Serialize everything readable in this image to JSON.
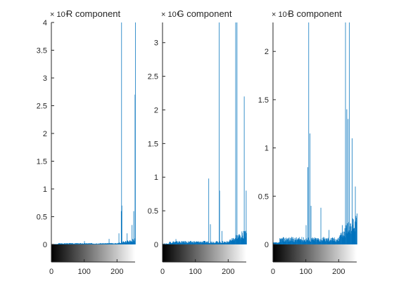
{
  "chart_data": [
    {
      "type": "histogram",
      "title": "R component",
      "exponent_label": "× 10⁴",
      "bar_color": "#0072BD",
      "xlim": [
        0,
        255
      ],
      "ylim": [
        0,
        40000
      ],
      "xticks": [
        0,
        100,
        200
      ],
      "xtick_labels": [
        "0",
        "100",
        "200"
      ],
      "yticks": [
        0,
        5000,
        10000,
        15000,
        20000,
        25000,
        30000,
        35000,
        40000
      ],
      "ytick_labels": [
        "0",
        "0.5",
        "1",
        "1.5",
        "2",
        "2.5",
        "3",
        "3.5",
        "4"
      ],
      "colorbar": "gray",
      "peaks": [
        [
          100,
          600
        ],
        [
          175,
          1000
        ],
        [
          205,
          2000
        ],
        [
          212,
          6000
        ],
        [
          213,
          40000
        ],
        [
          214,
          7000
        ],
        [
          230,
          2000
        ],
        [
          245,
          3500
        ],
        [
          250,
          6000
        ],
        [
          254,
          27000
        ],
        [
          255,
          40000
        ]
      ],
      "baseline": 200
    },
    {
      "type": "histogram",
      "title": "G component",
      "exponent_label": "× 10⁴",
      "bar_color": "#0072BD",
      "xlim": [
        0,
        255
      ],
      "ylim": [
        0,
        33000
      ],
      "xticks": [
        0,
        100,
        200
      ],
      "xtick_labels": [
        "0",
        "100",
        "200"
      ],
      "yticks": [
        0,
        5000,
        10000,
        15000,
        20000,
        25000,
        30000
      ],
      "ytick_labels": [
        "0",
        "0.5",
        "1",
        "1.5",
        "2",
        "2.5",
        "3"
      ],
      "colorbar": "gray",
      "peaks": [
        [
          40,
          800
        ],
        [
          50,
          500
        ],
        [
          140,
          9800
        ],
        [
          145,
          3000
        ],
        [
          172,
          33000
        ],
        [
          173,
          8000
        ],
        [
          180,
          2000
        ],
        [
          222,
          33000
        ],
        [
          226,
          33000
        ],
        [
          248,
          22000
        ],
        [
          254,
          8000
        ]
      ],
      "baseline": 400
    },
    {
      "type": "histogram",
      "title": "B component",
      "exponent_label": "× 10⁴",
      "bar_color": "#0072BD",
      "xlim": [
        0,
        255
      ],
      "ylim": [
        0,
        23000
      ],
      "xticks": [
        0,
        100,
        200
      ],
      "xtick_labels": [
        "0",
        "100",
        "200"
      ],
      "yticks": [
        0,
        5000,
        10000,
        15000,
        20000
      ],
      "ytick_labels": [
        "0",
        "0.5",
        "1",
        "1.5",
        "2"
      ],
      "colorbar": "gray",
      "peaks": [
        [
          40,
          700
        ],
        [
          100,
          2000
        ],
        [
          105,
          8000
        ],
        [
          108,
          23000
        ],
        [
          112,
          11500
        ],
        [
          115,
          4000
        ],
        [
          145,
          3800
        ],
        [
          170,
          1500
        ],
        [
          210,
          2000
        ],
        [
          220,
          23000
        ],
        [
          224,
          14000
        ],
        [
          228,
          13000
        ],
        [
          232,
          23000
        ],
        [
          240,
          11000
        ],
        [
          250,
          6000
        ]
      ],
      "baseline": 600
    }
  ]
}
